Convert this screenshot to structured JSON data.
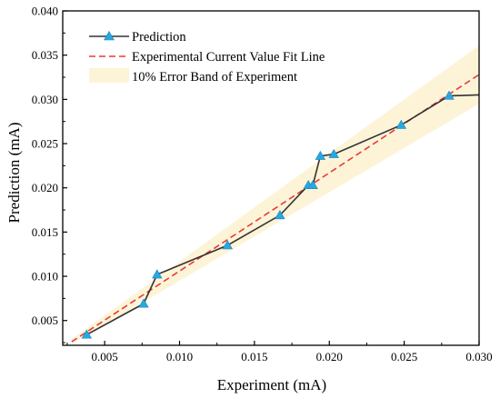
{
  "chart_data": {
    "type": "line",
    "xlabel": "Experiment (mA)",
    "ylabel": "Prediction (mA)",
    "xlim": [
      0.0022,
      0.03
    ],
    "ylim": [
      0.0022,
      0.04
    ],
    "x_ticks": [
      "0.005",
      "0.010",
      "0.015",
      "0.020",
      "0.025",
      "0.030"
    ],
    "x_tick_values": [
      0.005,
      0.01,
      0.015,
      0.02,
      0.025,
      0.03
    ],
    "y_ticks": [
      "0.005",
      "0.010",
      "0.015",
      "0.020",
      "0.025",
      "0.030",
      "0.035",
      "0.040"
    ],
    "y_tick_values": [
      0.005,
      0.01,
      0.015,
      0.02,
      0.025,
      0.03,
      0.035,
      0.04
    ],
    "legend_position": "top-left",
    "grid": false,
    "series": [
      {
        "name": "Prediction",
        "kind": "line-with-triangle-markers",
        "color": "#333333",
        "marker_color": "#29a8e0",
        "x": [
          0.0038,
          0.0076,
          0.0085,
          0.0132,
          0.0167,
          0.0186,
          0.0189,
          0.0194,
          0.0203,
          0.0248,
          0.028
        ],
        "y": [
          0.0034,
          0.0069,
          0.0102,
          0.0135,
          0.0169,
          0.0203,
          0.0203,
          0.0236,
          0.0238,
          0.0271,
          0.0304
        ],
        "line_end": [
          0.03,
          0.0305
        ]
      },
      {
        "name": "Experimental Current Value Fit Line",
        "kind": "dashed-line",
        "color": "#e83a3a",
        "x": [
          0.0028,
          0.03
        ],
        "y": [
          0.0026,
          0.0328
        ]
      },
      {
        "name": "10% Error Band of Experiment",
        "kind": "band",
        "color": "#fdf4d8",
        "x": [
          0.0028,
          0.03
        ],
        "lower": [
          0.0023,
          0.0295
        ],
        "upper": [
          0.0029,
          0.0361
        ]
      }
    ]
  }
}
